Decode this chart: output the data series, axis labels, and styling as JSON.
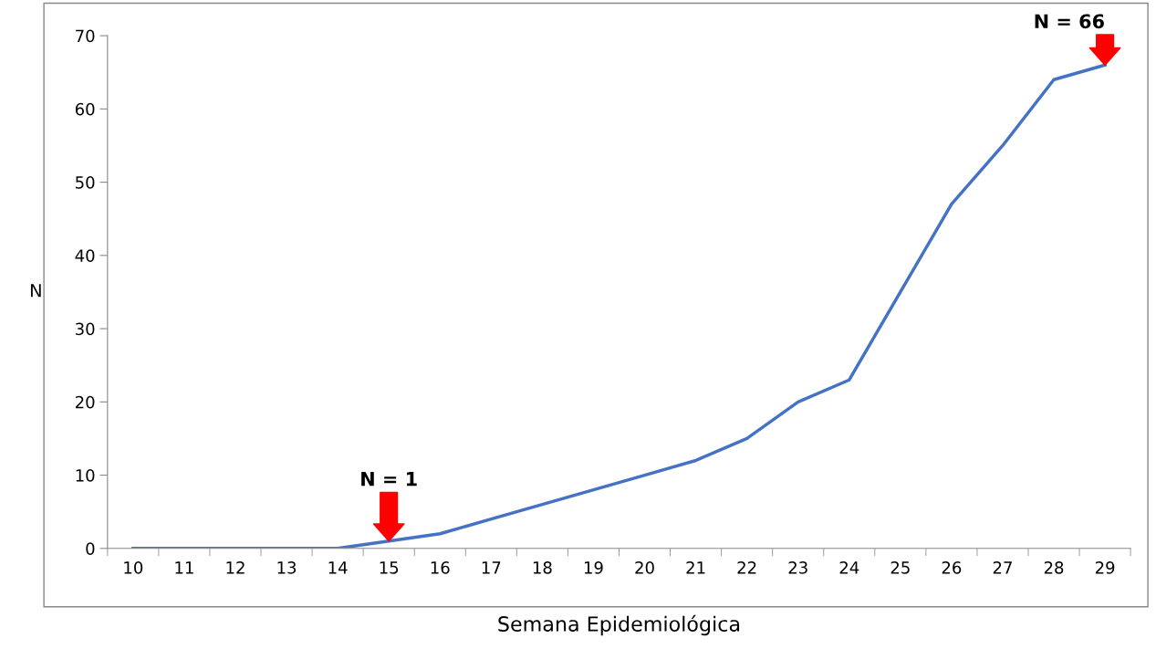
{
  "chart_data": {
    "type": "line",
    "xlabel": "Semana Epidemiológica",
    "ylabel": "N",
    "categories": [
      "10",
      "11",
      "12",
      "13",
      "14",
      "15",
      "16",
      "17",
      "18",
      "19",
      "20",
      "21",
      "22",
      "23",
      "24",
      "25",
      "26",
      "27",
      "28",
      "29"
    ],
    "series": [
      {
        "color": "#4472c4",
        "values": [
          0,
          0,
          0,
          0,
          0,
          1,
          2,
          4,
          6,
          8,
          10,
          12,
          15,
          20,
          23,
          35,
          47,
          55,
          64,
          66
        ]
      }
    ],
    "ylim": [
      0,
      70
    ],
    "yticks": [
      0,
      10,
      20,
      30,
      40,
      50,
      60,
      70
    ],
    "line_style": "solid",
    "annotations": [
      {
        "text": "N = 1",
        "x": "15",
        "y": 1
      },
      {
        "text": "N = 66",
        "x": "29",
        "y": 66
      }
    ]
  }
}
